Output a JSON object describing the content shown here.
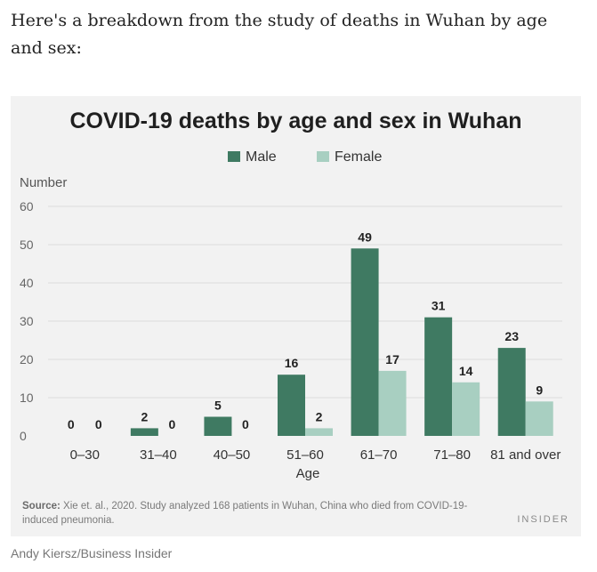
{
  "article": {
    "intro": "Here's a breakdown from the study of deaths in Wuhan by age and sex:",
    "credit": "Andy Kiersz/Business Insider"
  },
  "chart_data": {
    "type": "bar",
    "title": "COVID-19 deaths by age and sex in Wuhan",
    "xlabel": "Age",
    "ylabel": "Number",
    "categories": [
      "0–30",
      "31–40",
      "40–50",
      "51–60",
      "61–70",
      "71–80",
      "81 and over"
    ],
    "series": [
      {
        "name": "Male",
        "color": "#3f7a62",
        "values": [
          0,
          2,
          5,
          16,
          49,
          31,
          23
        ]
      },
      {
        "name": "Female",
        "color": "#a8cfc1",
        "values": [
          0,
          0,
          0,
          2,
          17,
          14,
          9
        ]
      }
    ],
    "ylim": [
      0,
      60
    ],
    "yticks": [
      0,
      10,
      20,
      30,
      40,
      50,
      60
    ],
    "grid": true,
    "legend": "top-center",
    "data_labels": true
  },
  "source": {
    "label": "Source:",
    "text": "Xie et. al., 2020. Study analyzed 168 patients in Wuhan, China who died from COVID-19-induced pneumonia."
  },
  "brand": "INSIDER"
}
